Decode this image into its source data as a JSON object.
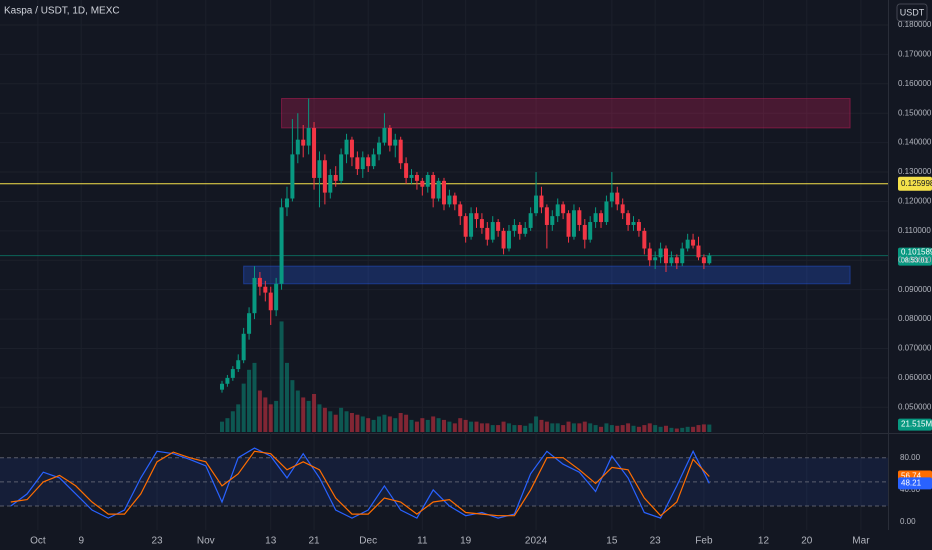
{
  "header": {
    "title": "Kaspa / USDT, 1D, MEXC",
    "currency": "USDT"
  },
  "chart_data": {
    "type": "candlestick",
    "x": [
      "2023-11-04",
      "2023-11-05",
      "2023-11-06",
      "2023-11-07",
      "2023-11-08",
      "2023-11-09",
      "2023-11-10",
      "2023-11-11",
      "2023-11-12",
      "2023-11-13",
      "2023-11-14",
      "2023-11-15",
      "2023-11-16",
      "2023-11-17",
      "2023-11-18",
      "2023-11-19",
      "2023-11-20",
      "2023-11-21",
      "2023-11-22",
      "2023-11-23",
      "2023-11-24",
      "2023-11-25",
      "2023-11-26",
      "2023-11-27",
      "2023-11-28",
      "2023-11-29",
      "2023-11-30",
      "2023-12-01",
      "2023-12-02",
      "2023-12-03",
      "2023-12-04",
      "2023-12-05",
      "2023-12-06",
      "2023-12-07",
      "2023-12-08",
      "2023-12-09",
      "2023-12-10",
      "2023-12-11",
      "2023-12-12",
      "2023-12-13",
      "2023-12-14",
      "2023-12-15",
      "2023-12-16",
      "2023-12-17",
      "2023-12-18",
      "2023-12-19",
      "2023-12-20",
      "2023-12-21",
      "2023-12-22",
      "2023-12-23",
      "2023-12-24",
      "2023-12-25",
      "2023-12-26",
      "2023-12-27",
      "2023-12-28",
      "2023-12-29",
      "2023-12-30",
      "2023-12-31",
      "2024-01-01",
      "2024-01-02",
      "2024-01-03",
      "2024-01-04",
      "2024-01-05",
      "2024-01-06",
      "2024-01-07",
      "2024-01-08",
      "2024-01-09",
      "2024-01-10",
      "2024-01-11",
      "2024-01-12",
      "2024-01-13",
      "2024-01-14",
      "2024-01-15",
      "2024-01-16",
      "2024-01-17",
      "2024-01-18",
      "2024-01-19",
      "2024-01-20",
      "2024-01-21",
      "2024-01-22",
      "2024-01-23",
      "2024-01-24",
      "2024-01-25",
      "2024-01-26",
      "2024-01-27",
      "2024-01-28",
      "2024-01-29",
      "2024-01-30",
      "2024-01-31",
      "2024-02-01",
      "2024-02-02"
    ],
    "open": [
      0.056,
      0.058,
      0.06,
      0.063,
      0.066,
      0.075,
      0.082,
      0.094,
      0.091,
      0.089,
      0.083,
      0.092,
      0.118,
      0.121,
      0.136,
      0.141,
      0.139,
      0.145,
      0.128,
      0.134,
      0.123,
      0.129,
      0.127,
      0.136,
      0.141,
      0.135,
      0.131,
      0.135,
      0.132,
      0.136,
      0.14,
      0.145,
      0.139,
      0.141,
      0.133,
      0.128,
      0.129,
      0.127,
      0.125,
      0.129,
      0.121,
      0.127,
      0.119,
      0.122,
      0.119,
      0.115,
      0.108,
      0.116,
      0.114,
      0.111,
      0.107,
      0.113,
      0.11,
      0.104,
      0.11,
      0.112,
      0.109,
      0.111,
      0.116,
      0.122,
      0.118,
      0.112,
      0.115,
      0.119,
      0.116,
      0.108,
      0.117,
      0.112,
      0.107,
      0.113,
      0.116,
      0.113,
      0.12,
      0.123,
      0.119,
      0.116,
      0.112,
      0.113,
      0.11,
      0.104,
      0.1,
      0.101,
      0.104,
      0.099,
      0.101,
      0.099,
      0.104,
      0.107,
      0.105,
      0.101,
      0.099
    ],
    "high": [
      0.059,
      0.061,
      0.064,
      0.068,
      0.077,
      0.084,
      0.098,
      0.096,
      0.093,
      0.091,
      0.094,
      0.121,
      0.125,
      0.148,
      0.15,
      0.146,
      0.155,
      0.147,
      0.137,
      0.136,
      0.131,
      0.132,
      0.138,
      0.143,
      0.142,
      0.137,
      0.137,
      0.136,
      0.138,
      0.142,
      0.15,
      0.146,
      0.143,
      0.142,
      0.135,
      0.131,
      0.13,
      0.128,
      0.13,
      0.13,
      0.128,
      0.128,
      0.124,
      0.123,
      0.12,
      0.116,
      0.118,
      0.118,
      0.116,
      0.113,
      0.115,
      0.114,
      0.111,
      0.112,
      0.114,
      0.113,
      0.113,
      0.118,
      0.13,
      0.125,
      0.119,
      0.117,
      0.121,
      0.12,
      0.117,
      0.119,
      0.118,
      0.114,
      0.115,
      0.118,
      0.117,
      0.122,
      0.13,
      0.125,
      0.121,
      0.117,
      0.115,
      0.114,
      0.111,
      0.106,
      0.103,
      0.106,
      0.105,
      0.103,
      0.102,
      0.106,
      0.109,
      0.109,
      0.108,
      0.102,
      0.1025
    ],
    "low": [
      0.055,
      0.057,
      0.059,
      0.062,
      0.065,
      0.073,
      0.08,
      0.088,
      0.086,
      0.078,
      0.081,
      0.09,
      0.115,
      0.12,
      0.133,
      0.135,
      0.136,
      0.124,
      0.118,
      0.119,
      0.121,
      0.125,
      0.126,
      0.133,
      0.132,
      0.129,
      0.128,
      0.13,
      0.131,
      0.134,
      0.139,
      0.137,
      0.135,
      0.131,
      0.126,
      0.126,
      0.124,
      0.122,
      0.123,
      0.118,
      0.12,
      0.117,
      0.118,
      0.117,
      0.112,
      0.106,
      0.107,
      0.111,
      0.109,
      0.105,
      0.106,
      0.108,
      0.102,
      0.103,
      0.108,
      0.107,
      0.108,
      0.11,
      0.115,
      0.116,
      0.104,
      0.11,
      0.113,
      0.114,
      0.106,
      0.107,
      0.11,
      0.104,
      0.106,
      0.111,
      0.111,
      0.112,
      0.118,
      0.117,
      0.114,
      0.11,
      0.11,
      0.108,
      0.102,
      0.098,
      0.097,
      0.099,
      0.096,
      0.098,
      0.097,
      0.098,
      0.103,
      0.104,
      0.1,
      0.097,
      0.0985
    ],
    "close": [
      0.058,
      0.06,
      0.063,
      0.066,
      0.075,
      0.082,
      0.094,
      0.091,
      0.089,
      0.083,
      0.092,
      0.118,
      0.121,
      0.136,
      0.141,
      0.139,
      0.145,
      0.128,
      0.134,
      0.123,
      0.129,
      0.127,
      0.136,
      0.141,
      0.135,
      0.131,
      0.135,
      0.132,
      0.136,
      0.14,
      0.145,
      0.139,
      0.141,
      0.133,
      0.128,
      0.129,
      0.127,
      0.125,
      0.129,
      0.121,
      0.127,
      0.119,
      0.122,
      0.119,
      0.115,
      0.108,
      0.116,
      0.114,
      0.111,
      0.107,
      0.113,
      0.11,
      0.104,
      0.11,
      0.112,
      0.109,
      0.111,
      0.116,
      0.122,
      0.118,
      0.112,
      0.115,
      0.119,
      0.116,
      0.108,
      0.117,
      0.112,
      0.107,
      0.113,
      0.116,
      0.113,
      0.12,
      0.123,
      0.119,
      0.116,
      0.112,
      0.113,
      0.11,
      0.104,
      0.1,
      0.101,
      0.104,
      0.099,
      0.101,
      0.099,
      0.104,
      0.107,
      0.105,
      0.101,
      0.099,
      0.101589
    ],
    "countdown": "08:53:01",
    "up_color": "#089981",
    "down_color": "#f23645",
    "xlim": [
      "2023-09-24",
      "2024-03-06"
    ],
    "xticks": [
      {
        "value": "2023-10-01",
        "label": "Oct"
      },
      {
        "value": "2023-10-09",
        "label": "9"
      },
      {
        "value": "2023-10-23",
        "label": "23"
      },
      {
        "value": "2023-11-01",
        "label": "Nov"
      },
      {
        "value": "2023-11-13",
        "label": "13"
      },
      {
        "value": "2023-11-21",
        "label": "21"
      },
      {
        "value": "2023-12-01",
        "label": "Dec"
      },
      {
        "value": "2023-12-11",
        "label": "11"
      },
      {
        "value": "2023-12-19",
        "label": "19"
      },
      {
        "value": "2024-01-01",
        "label": "2024"
      },
      {
        "value": "2024-01-15",
        "label": "15"
      },
      {
        "value": "2024-01-23",
        "label": "23"
      },
      {
        "value": "2024-02-01",
        "label": "Feb"
      },
      {
        "value": "2024-02-12",
        "label": "12"
      },
      {
        "value": "2024-02-20",
        "label": "20"
      },
      {
        "value": "2024-03-01",
        "label": "Mar"
      }
    ],
    "ylim": [
      0.0416,
      0.1885
    ],
    "yticks": [
      {
        "value": 0.05,
        "label": "0.050000"
      },
      {
        "value": 0.06,
        "label": "0.060000"
      },
      {
        "value": 0.07,
        "label": "0.070000"
      },
      {
        "value": 0.08,
        "label": "0.080000"
      },
      {
        "value": 0.09,
        "label": "0.090000"
      },
      {
        "value": 0.1,
        "label": "0.100000"
      },
      {
        "value": 0.11,
        "label": "0.110000"
      },
      {
        "value": 0.12,
        "label": "0.120000"
      },
      {
        "value": 0.13,
        "label": "0.130000"
      },
      {
        "value": 0.14,
        "label": "0.140000"
      },
      {
        "value": 0.15,
        "label": "0.150000"
      },
      {
        "value": 0.16,
        "label": "0.160000"
      },
      {
        "value": 0.17,
        "label": "0.170000"
      },
      {
        "value": 0.18,
        "label": "0.180000"
      }
    ],
    "grid": true,
    "level": {
      "value": 0.125998,
      "color": "#f5e14a"
    },
    "zones": [
      {
        "from": "2023-11-15",
        "to": "2024-02-28",
        "low": 0.145,
        "high": 0.155,
        "color": "#e91e63"
      },
      {
        "from": "2023-11-08",
        "to": "2024-02-28",
        "low": 0.092,
        "high": 0.098,
        "color": "#2962ff"
      }
    ],
    "volume": {
      "values": [
        30,
        40,
        60,
        80,
        140,
        180,
        200,
        120,
        100,
        80,
        90,
        320,
        200,
        150,
        120,
        100,
        90,
        110,
        80,
        70,
        60,
        50,
        70,
        60,
        55,
        50,
        45,
        40,
        35,
        45,
        50,
        45,
        40,
        55,
        50,
        35,
        30,
        40,
        35,
        45,
        40,
        35,
        30,
        25,
        40,
        35,
        30,
        30,
        25,
        25,
        20,
        20,
        30,
        25,
        20,
        20,
        18,
        25,
        45,
        35,
        30,
        25,
        25,
        20,
        30,
        25,
        25,
        30,
        25,
        20,
        15,
        25,
        20,
        18,
        20,
        25,
        18,
        15,
        20,
        25,
        20,
        15,
        18,
        12,
        10,
        12,
        15,
        15,
        20,
        22,
        21.515
      ],
      "ylim": [
        0,
        1250
      ],
      "last_value_label": "21.515M"
    },
    "stochastic": {
      "x": [
        "2023-09-26",
        "2023-09-29",
        "2023-10-02",
        "2023-10-05",
        "2023-10-08",
        "2023-10-11",
        "2023-10-14",
        "2023-10-17",
        "2023-10-20",
        "2023-10-23",
        "2023-10-26",
        "2023-10-29",
        "2023-11-01",
        "2023-11-04",
        "2023-11-07",
        "2023-11-10",
        "2023-11-13",
        "2023-11-16",
        "2023-11-19",
        "2023-11-22",
        "2023-11-25",
        "2023-11-28",
        "2023-12-01",
        "2023-12-04",
        "2023-12-07",
        "2023-12-10",
        "2023-12-13",
        "2023-12-16",
        "2023-12-19",
        "2023-12-22",
        "2023-12-25",
        "2023-12-28",
        "2023-12-31",
        "2024-01-03",
        "2024-01-06",
        "2024-01-09",
        "2024-01-12",
        "2024-01-15",
        "2024-01-18",
        "2024-01-21",
        "2024-01-24",
        "2024-01-27",
        "2024-01-30",
        "2024-02-02"
      ],
      "series": [
        {
          "color": "#2962ff",
          "values": [
            20,
            35,
            62,
            55,
            35,
            15,
            5,
            15,
            55,
            88,
            85,
            78,
            70,
            25,
            80,
            92,
            82,
            55,
            85,
            55,
            15,
            5,
            15,
            45,
            15,
            5,
            40,
            20,
            8,
            12,
            5,
            10,
            60,
            88,
            72,
            62,
            38,
            82,
            55,
            12,
            5,
            45,
            88,
            48.21
          ]
        },
        {
          "color": "#ff6d00",
          "values": [
            25,
            28,
            50,
            58,
            45,
            25,
            10,
            10,
            35,
            75,
            87,
            80,
            75,
            45,
            60,
            88,
            85,
            65,
            75,
            65,
            30,
            10,
            10,
            30,
            25,
            10,
            25,
            28,
            12,
            10,
            8,
            8,
            40,
            80,
            80,
            65,
            48,
            68,
            65,
            30,
            8,
            25,
            78,
            56.74
          ]
        }
      ],
      "ylim": [
        -9.8,
        109.5
      ],
      "yticks": [
        {
          "value": 0,
          "label": "0.00"
        },
        {
          "value": 40,
          "label": "40.00"
        },
        {
          "value": 80,
          "label": "80.00"
        }
      ],
      "bands": [
        80,
        50,
        20
      ]
    }
  }
}
